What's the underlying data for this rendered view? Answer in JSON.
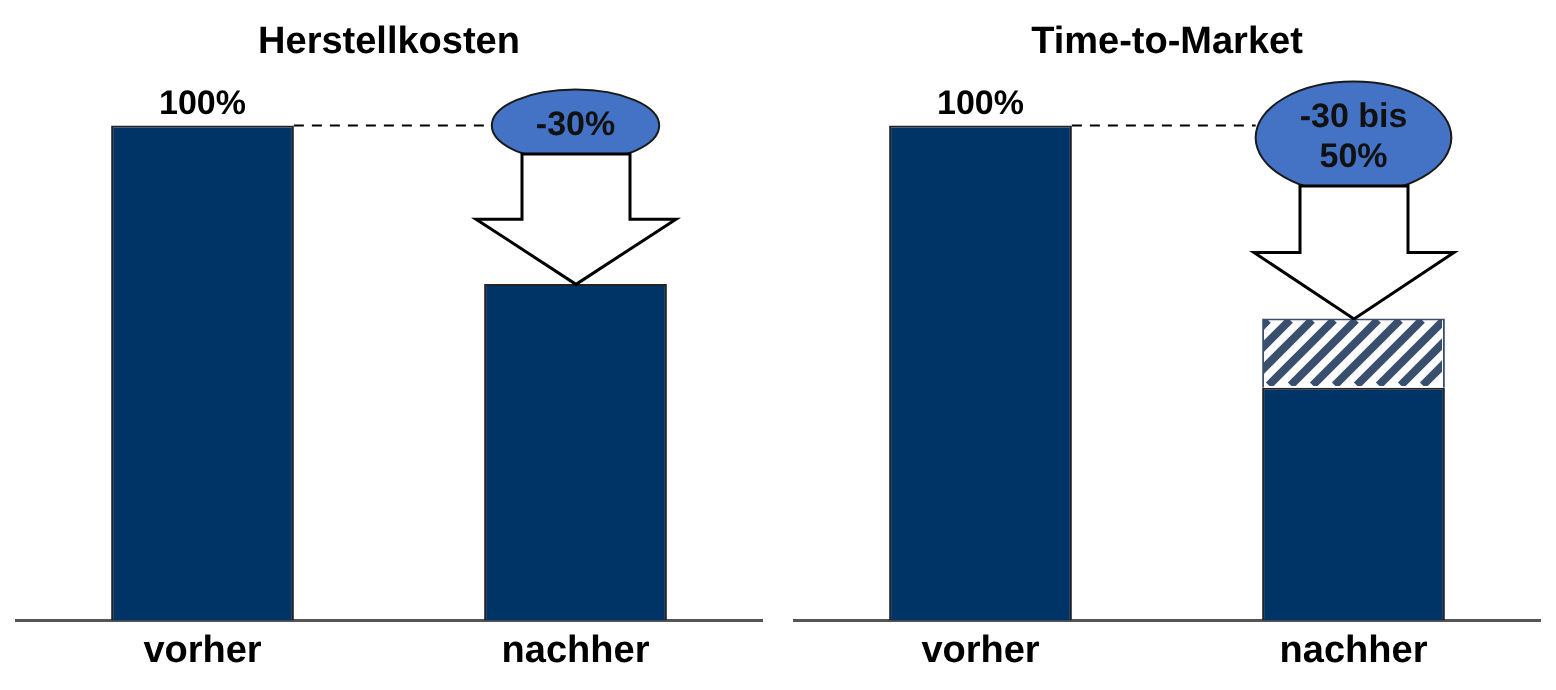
{
  "chart_data": [
    {
      "type": "bar",
      "title": "Herstellkosten",
      "stacked": true,
      "categories": [
        "vorher",
        "nachher"
      ],
      "ylim": [
        0,
        100
      ],
      "tick_labels": "x",
      "series": [
        {
          "color": "#003366",
          "values": [
            100,
            68
          ],
          "value_labels": [
            "100%",
            null
          ]
        }
      ],
      "ref_lines": [
        {
          "axis": "y",
          "value": 100,
          "color": "#000000",
          "line_style": "dashed"
        }
      ],
      "annotations": [
        "-30%"
      ],
      "legend": false,
      "grid": false
    },
    {
      "type": "bar",
      "title": "Time-to-Market",
      "stacked": true,
      "categories": [
        "vorher",
        "nachher"
      ],
      "ylim": [
        0,
        100
      ],
      "tick_labels": "x",
      "series": [
        {
          "color": "#003366",
          "values": [
            100,
            47
          ],
          "value_labels": [
            "100%",
            null
          ]
        },
        {
          "color": "#3a4f6e",
          "values": [
            null,
            14
          ]
        }
      ],
      "ref_lines": [
        {
          "axis": "y",
          "value": 100,
          "color": "#000000",
          "line_style": "dashed"
        }
      ],
      "annotations": [
        "-30 bis 50%"
      ],
      "legend": false,
      "grid": false
    }
  ]
}
